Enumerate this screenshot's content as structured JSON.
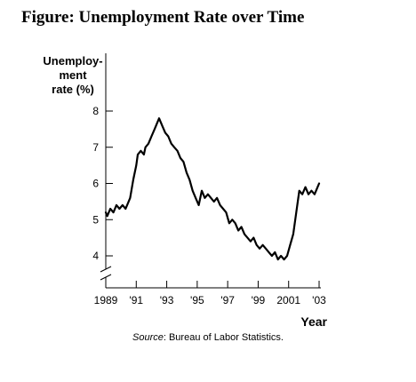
{
  "header": {
    "figure_title": "Figure: Unemployment Rate over Time"
  },
  "source": {
    "label": "Source",
    "text": ": Bureau of Labor Statistics."
  },
  "chart_data": {
    "type": "line",
    "title": "",
    "ylabel_lines": [
      "Unemploy-",
      "ment",
      "rate (%)"
    ],
    "xlabel": "Year",
    "ylim": [
      4,
      8
    ],
    "xlim": [
      1989,
      2003
    ],
    "y_axis_break": true,
    "x_axis_break": true,
    "grid": false,
    "yticks": [
      4,
      5,
      6,
      7,
      8
    ],
    "ytick_labels": [
      "4",
      "5",
      "6",
      "7",
      "8"
    ],
    "xticks": [
      1989,
      1991,
      1993,
      1995,
      1997,
      1999,
      2001,
      2003
    ],
    "xtick_labels": [
      "1989",
      "'91",
      "'93",
      "'95",
      "'97",
      "'99",
      "2001",
      "'03"
    ],
    "line_color": "#000000",
    "series": [
      {
        "x": [
          1989.0,
          1989.1,
          1989.3,
          1989.5,
          1989.7,
          1989.9,
          1990.1,
          1990.3,
          1990.5,
          1990.6,
          1990.8,
          1991.0,
          1991.1,
          1991.3,
          1991.5,
          1991.6,
          1991.8,
          1992.0,
          1992.2,
          1992.4,
          1992.5,
          1992.7,
          1992.9,
          1993.1,
          1993.3,
          1993.5,
          1993.7,
          1993.9,
          1994.1,
          1994.3,
          1994.5,
          1994.7,
          1994.9,
          1995.1,
          1995.3,
          1995.5,
          1995.7,
          1995.9,
          1996.1,
          1996.3,
          1996.5,
          1996.7,
          1996.9,
          1997.1,
          1997.3,
          1997.5,
          1997.7,
          1997.9,
          1998.1,
          1998.3,
          1998.5,
          1998.7,
          1998.9,
          1999.1,
          1999.3,
          1999.5,
          1999.7,
          1999.9,
          2000.1,
          2000.3,
          2000.5,
          2000.7,
          2000.9,
          2001.1,
          2001.3,
          2001.5,
          2001.7,
          2001.9,
          2002.1,
          2002.3,
          2002.5,
          2002.7,
          2002.9,
          2003.0
        ],
        "y": [
          5.2,
          5.1,
          5.3,
          5.2,
          5.4,
          5.3,
          5.4,
          5.3,
          5.5,
          5.6,
          6.1,
          6.5,
          6.8,
          6.9,
          6.8,
          7.0,
          7.1,
          7.3,
          7.5,
          7.7,
          7.8,
          7.6,
          7.4,
          7.3,
          7.1,
          7.0,
          6.9,
          6.7,
          6.6,
          6.3,
          6.1,
          5.8,
          5.6,
          5.4,
          5.8,
          5.6,
          5.7,
          5.6,
          5.5,
          5.6,
          5.4,
          5.3,
          5.2,
          4.9,
          5.0,
          4.9,
          4.7,
          4.8,
          4.6,
          4.5,
          4.4,
          4.5,
          4.3,
          4.2,
          4.3,
          4.2,
          4.1,
          4.0,
          4.1,
          3.9,
          4.0,
          3.9,
          4.0,
          4.3,
          4.6,
          5.2,
          5.8,
          5.7,
          5.9,
          5.7,
          5.8,
          5.7,
          5.9,
          6.0
        ]
      }
    ]
  }
}
